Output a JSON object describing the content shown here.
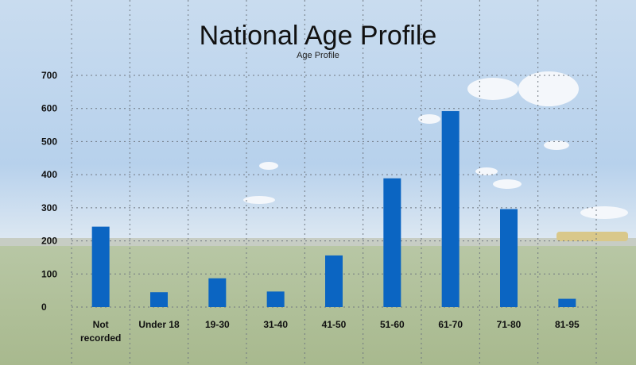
{
  "chart_data": {
    "type": "bar",
    "title": "National Age Profile",
    "subtitle": "Age Profile",
    "categories": [
      "Not recorded",
      "Under 18",
      "19-30",
      "31-40",
      "41-50",
      "51-60",
      "61-70",
      "71-80",
      "81-95"
    ],
    "category_lines": [
      [
        "Not",
        "recorded"
      ],
      [
        "Under 18"
      ],
      [
        "19-30"
      ],
      [
        "31-40"
      ],
      [
        "41-50"
      ],
      [
        "51-60"
      ],
      [
        "61-70"
      ],
      [
        "71-80"
      ],
      [
        "81-95"
      ]
    ],
    "values": [
      243,
      45,
      87,
      47,
      156,
      389,
      592,
      296,
      25
    ],
    "ylim": [
      0,
      700
    ],
    "yticks": [
      0,
      100,
      200,
      300,
      400,
      500,
      600,
      700
    ],
    "grid": true,
    "bar_color": "#0b65c2"
  }
}
